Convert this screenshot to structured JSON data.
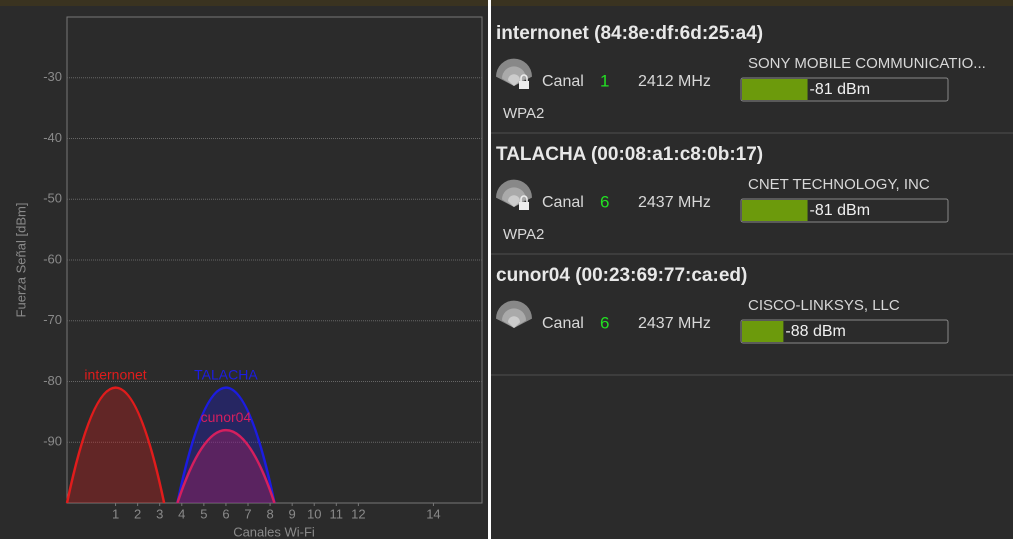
{
  "chart_data": {
    "type": "line",
    "ylabel": "Fuerza Señal [dBm]",
    "xlabel": "Canales Wi-Fi",
    "ylim": [
      -100,
      -20
    ],
    "yticks": [
      -90,
      -80,
      -70,
      -60,
      -50,
      -40,
      -30
    ],
    "xlim": [
      2401,
      2495
    ],
    "xticks": [
      {
        "value": 2412,
        "label": "1"
      },
      {
        "value": 2417,
        "label": "2"
      },
      {
        "value": 2422,
        "label": "3"
      },
      {
        "value": 2427,
        "label": "4"
      },
      {
        "value": 2432,
        "label": "5"
      },
      {
        "value": 2437,
        "label": "6"
      },
      {
        "value": 2442,
        "label": "7"
      },
      {
        "value": 2447,
        "label": "8"
      },
      {
        "value": 2452,
        "label": "9"
      },
      {
        "value": 2457,
        "label": "10"
      },
      {
        "value": 2462,
        "label": "11"
      },
      {
        "value": 2467,
        "label": "12"
      },
      {
        "value": 2484,
        "label": "14"
      }
    ],
    "grid": true,
    "series": [
      {
        "name": "internonet",
        "color": "#e01c1c",
        "x": [
          2412
        ],
        "values": [
          -81
        ]
      },
      {
        "name": "TALACHA",
        "color": "#1c1ce0",
        "x": [
          2437
        ],
        "values": [
          -81
        ]
      },
      {
        "name": "cunor04",
        "color": "#d41f5e",
        "x": [
          2437
        ],
        "values": [
          -88
        ]
      }
    ]
  },
  "signal_scale": [
    -100,
    -40
  ],
  "networks": [
    {
      "title": "internonet (84:8e:df:6d:25:a4)",
      "channel_label": "Canal",
      "channel": "1",
      "frequency": "2412 MHz",
      "vendor": "SONY MOBILE COMMUNICATIO...",
      "signal": -81,
      "signal_label": "-81 dBm",
      "security": "WPA2",
      "locked": true
    },
    {
      "title": "TALACHA (00:08:a1:c8:0b:17)",
      "channel_label": "Canal",
      "channel": "6",
      "frequency": "2437 MHz",
      "vendor": "CNET TECHNOLOGY, INC",
      "signal": -81,
      "signal_label": "-81 dBm",
      "security": "WPA2",
      "locked": true
    },
    {
      "title": "cunor04 (00:23:69:77:ca:ed)",
      "channel_label": "Canal",
      "channel": "6",
      "frequency": "2437 MHz",
      "vendor": "CISCO-LINKSYS, LLC",
      "signal": -88,
      "signal_label": "-88 dBm",
      "locked": false
    }
  ]
}
